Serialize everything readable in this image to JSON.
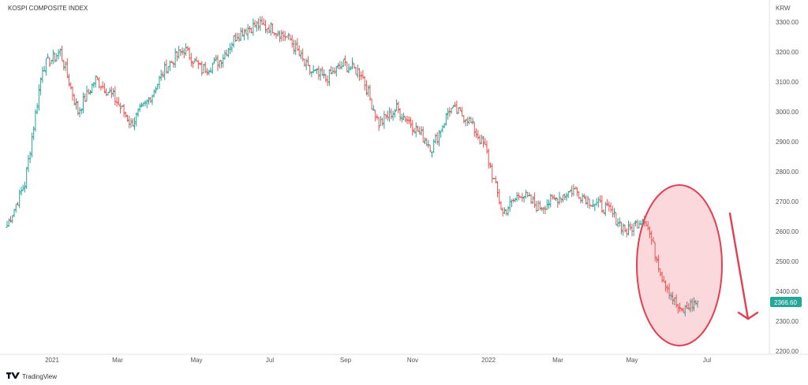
{
  "chart_data": {
    "type": "ohlc",
    "title": "KOSPI COMPOSITE INDEX",
    "currency": "KRW",
    "brand": "TradingView",
    "last_price": "2366.60",
    "ylim": [
      2200,
      3330
    ],
    "y_ticks": [
      "3300.00",
      "3200.00",
      "3100.00",
      "3000.00",
      "2900.00",
      "2800.00",
      "2700.00",
      "2600.00",
      "2500.00",
      "2400.00",
      "2300.00",
      "2200.00"
    ],
    "x_ticks": [
      "2021",
      "Mar",
      "May",
      "Jul",
      "Sep",
      "Nov",
      "2022",
      "Mar",
      "May",
      "Jul"
    ],
    "series": [
      {
        "date": "2020-12",
        "close": 2620
      },
      {
        "date": "2020-12",
        "close": 2760
      },
      {
        "date": "2021-01",
        "close": 3150
      },
      {
        "date": "2021-01",
        "close": 3200
      },
      {
        "date": "2021-01",
        "close": 3000
      },
      {
        "date": "2021-02",
        "close": 3110
      },
      {
        "date": "2021-02",
        "close": 3050
      },
      {
        "date": "2021-03",
        "close": 2960
      },
      {
        "date": "2021-03",
        "close": 3040
      },
      {
        "date": "2021-04",
        "close": 3150
      },
      {
        "date": "2021-04",
        "close": 3210
      },
      {
        "date": "2021-05",
        "close": 3140
      },
      {
        "date": "2021-05",
        "close": 3170
      },
      {
        "date": "2021-06",
        "close": 3260
      },
      {
        "date": "2021-06",
        "close": 3290
      },
      {
        "date": "2021-07",
        "close": 3280
      },
      {
        "date": "2021-07",
        "close": 3240
      },
      {
        "date": "2021-08",
        "close": 3140
      },
      {
        "date": "2021-08",
        "close": 3110
      },
      {
        "date": "2021-09",
        "close": 3160
      },
      {
        "date": "2021-09",
        "close": 3130
      },
      {
        "date": "2021-10",
        "close": 2960
      },
      {
        "date": "2021-10",
        "close": 3010
      },
      {
        "date": "2021-11",
        "close": 2950
      },
      {
        "date": "2021-11",
        "close": 2880
      },
      {
        "date": "2021-12",
        "close": 3010
      },
      {
        "date": "2021-12",
        "close": 2980
      },
      {
        "date": "2022-01",
        "close": 2880
      },
      {
        "date": "2022-01",
        "close": 2660
      },
      {
        "date": "2022-02",
        "close": 2730
      },
      {
        "date": "2022-02",
        "close": 2680
      },
      {
        "date": "2022-03",
        "close": 2710
      },
      {
        "date": "2022-03",
        "close": 2740
      },
      {
        "date": "2022-04",
        "close": 2700
      },
      {
        "date": "2022-04",
        "close": 2670
      },
      {
        "date": "2022-05",
        "close": 2600
      },
      {
        "date": "2022-05",
        "close": 2650
      },
      {
        "date": "2022-06",
        "close": 2450
      },
      {
        "date": "2022-06",
        "close": 2330
      },
      {
        "date": "2022-06",
        "close": 2366.6
      }
    ],
    "grid": false,
    "annotations": [
      {
        "type": "ellipse",
        "color": "#e04050",
        "fill": "#f6b8bf"
      },
      {
        "type": "arrow",
        "direction": "down",
        "color": "#e04050"
      }
    ],
    "colors": {
      "up": "#26a69a",
      "down": "#ef5350",
      "price_tag": "#26a69a",
      "annotation": "#e04050",
      "annotation_fill": "#f6b8bf"
    }
  }
}
